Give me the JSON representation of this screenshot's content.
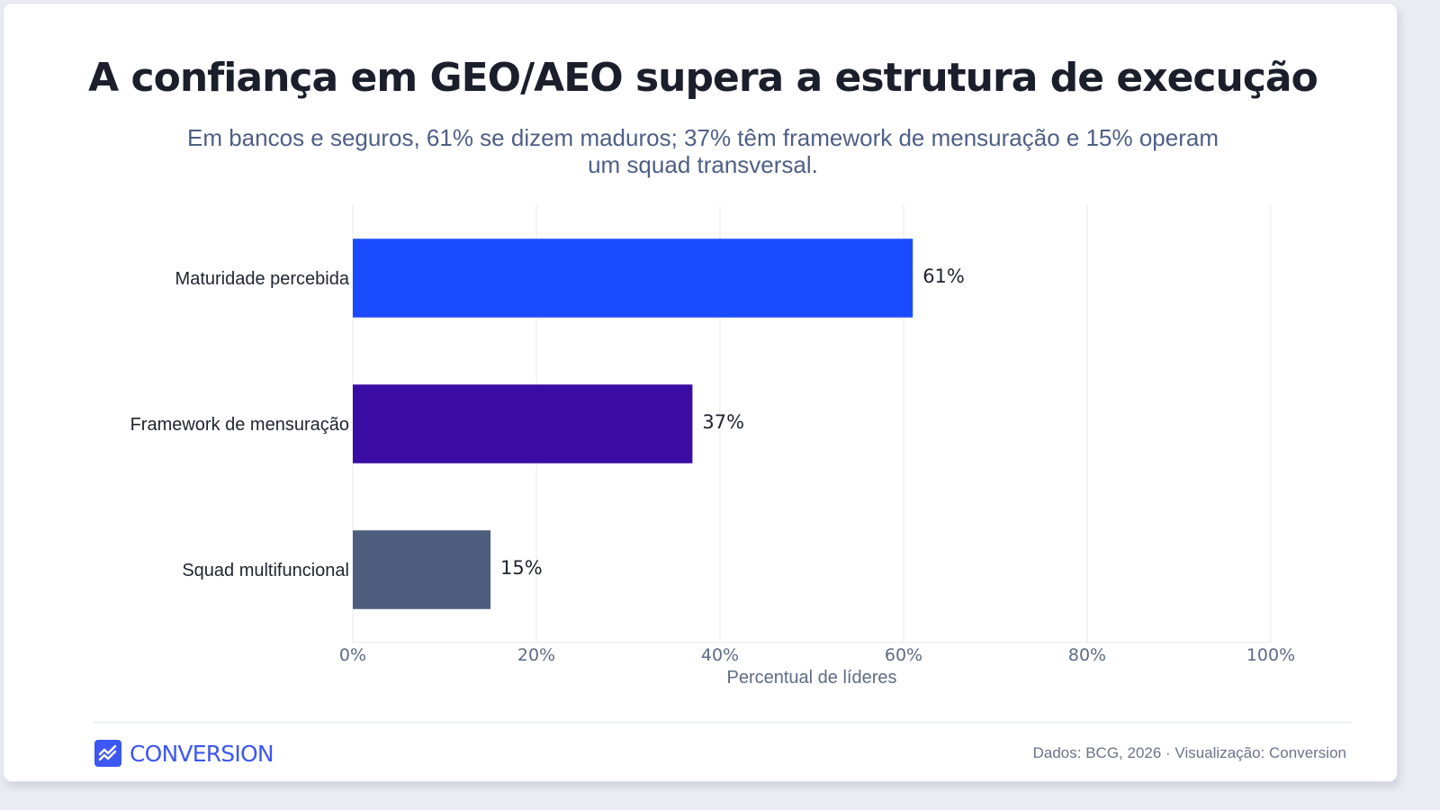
{
  "title": "A confiança em GEO/AEO supera a estrutura de execução",
  "subtitle": "Em bancos e seguros, 61% se dizem maduros; 37% têm framework de mensuração e 15% operam um squad transversal.",
  "chart_data": {
    "type": "bar",
    "orientation": "horizontal",
    "categories": [
      "Maturidade percebida",
      "Framework de mensuração",
      "Squad multifuncional"
    ],
    "values": [
      61,
      37,
      15
    ],
    "data_labels": [
      "61%",
      "37%",
      "15%"
    ],
    "colors": [
      "#1a4bff",
      "#3a0ca3",
      "#4e5d7e"
    ],
    "xlabel": "Percentual de líderes",
    "ylabel": "",
    "xlim": [
      0,
      100
    ],
    "xticks": [
      0,
      20,
      40,
      60,
      80,
      100
    ],
    "xtick_labels": [
      "0%",
      "20%",
      "40%",
      "60%",
      "80%",
      "100%"
    ],
    "grid": "vertical",
    "legend": "none"
  },
  "footer": {
    "brand": "CONVERSION",
    "brand_icon": "chart-line-icon",
    "brand_color": "#3d57f2",
    "credit": "Dados: BCG, 2026 · Visualização: Conversion"
  }
}
